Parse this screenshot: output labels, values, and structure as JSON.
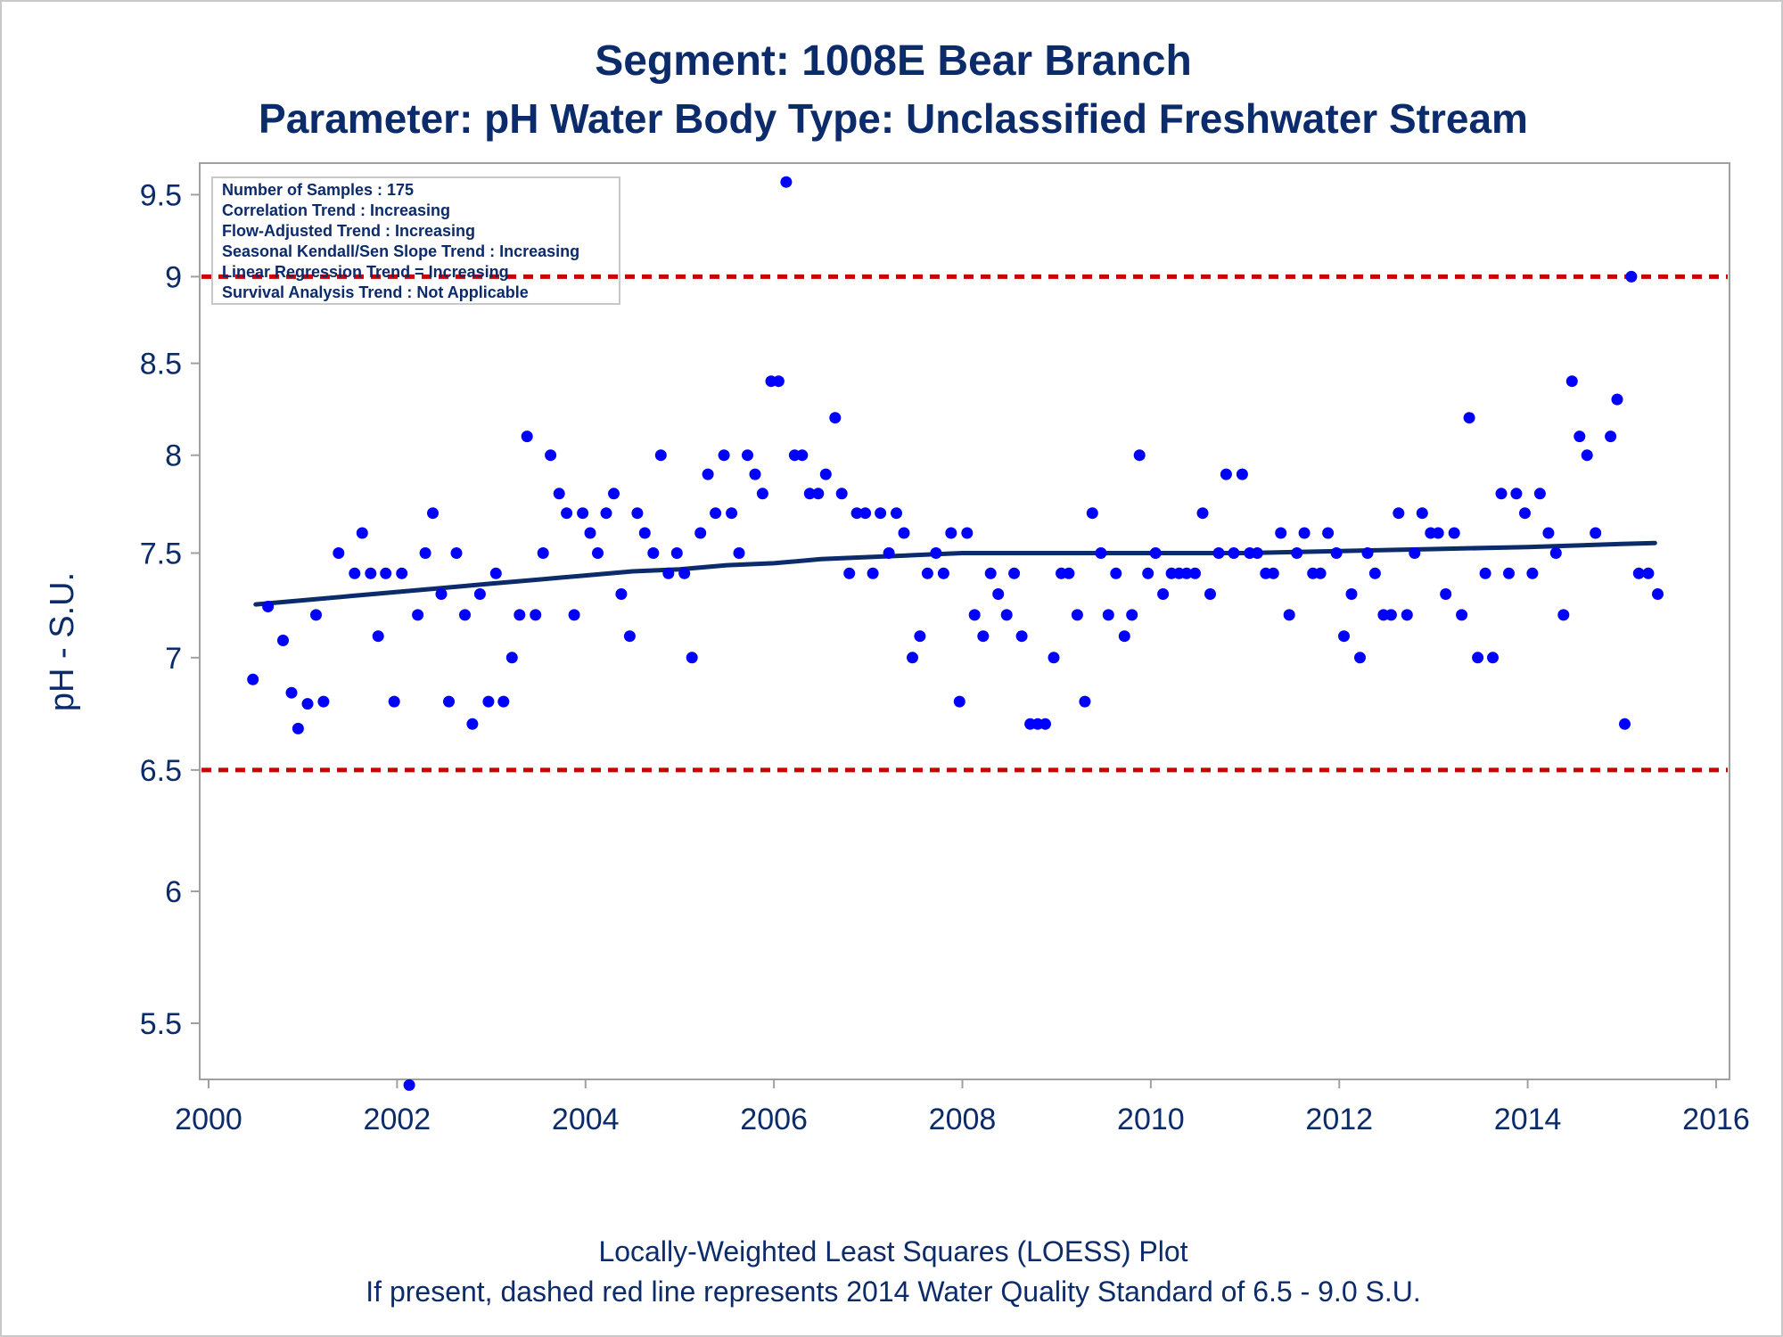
{
  "colors": {
    "text": "#0c2b6b",
    "points": "#0000ff",
    "loess": "#0c2b6b",
    "reference": "#cc0000",
    "frame": "#a0a0a0"
  },
  "chart_data": {
    "type": "scatter",
    "title": "Segment: 1008E  Bear Branch",
    "subtitle": "Parameter: pH   Water Body Type: Unclassified Freshwater Stream",
    "xlabel": "",
    "ylabel": "pH - S.U.",
    "xlim": [
      2000,
      2016
    ],
    "ylim": [
      5.3,
      9.7
    ],
    "y_scale": "log",
    "x_ticks": [
      "2000",
      "2002",
      "2004",
      "2006",
      "2008",
      "2010",
      "2012",
      "2014",
      "2016"
    ],
    "y_ticks": [
      "5.5",
      "6",
      "6.5",
      "7",
      "7.5",
      "8",
      "8.5",
      "9",
      "9.5"
    ],
    "grid": false,
    "stats_box": [
      "Number of Samples : 175",
      "Correlation Trend : Increasing",
      "Flow-Adjusted Trend : Increasing",
      "Seasonal Kendall/Sen Slope Trend : Increasing",
      "Linear Regression Trend = Increasing",
      "Survival Analysis Trend : Not Applicable"
    ],
    "stats_box_placement": "top-left",
    "reference_lines": [
      {
        "y": 9.0,
        "style": "dashed",
        "color": "#cc0000"
      },
      {
        "y": 6.5,
        "style": "dashed",
        "color": "#cc0000"
      }
    ],
    "series": [
      {
        "kind": "points",
        "points": [
          [
            2000.47,
            6.9
          ],
          [
            2000.63,
            7.24
          ],
          [
            2000.79,
            7.08
          ],
          [
            2000.88,
            6.84
          ],
          [
            2000.95,
            6.68
          ],
          [
            2001.05,
            6.79
          ],
          [
            2001.14,
            7.2
          ],
          [
            2001.22,
            6.8
          ],
          [
            2001.38,
            7.5
          ],
          [
            2001.55,
            7.4
          ],
          [
            2001.63,
            7.6
          ],
          [
            2001.72,
            7.4
          ],
          [
            2001.8,
            7.1
          ],
          [
            2001.88,
            7.4
          ],
          [
            2001.97,
            6.8
          ],
          [
            2002.05,
            7.4
          ],
          [
            2002.13,
            5.28
          ],
          [
            2002.22,
            7.2
          ],
          [
            2002.3,
            7.5
          ],
          [
            2002.38,
            7.7
          ],
          [
            2002.47,
            7.3
          ],
          [
            2002.55,
            6.8
          ],
          [
            2002.63,
            7.5
          ],
          [
            2002.72,
            7.2
          ],
          [
            2002.8,
            6.7
          ],
          [
            2002.88,
            7.3
          ],
          [
            2002.97,
            6.8
          ],
          [
            2003.05,
            7.4
          ],
          [
            2003.13,
            6.8
          ],
          [
            2003.22,
            7.0
          ],
          [
            2003.3,
            7.2
          ],
          [
            2003.38,
            8.1
          ],
          [
            2003.47,
            7.2
          ],
          [
            2003.55,
            7.5
          ],
          [
            2003.63,
            8.0
          ],
          [
            2003.72,
            7.8
          ],
          [
            2003.8,
            7.7
          ],
          [
            2003.88,
            7.2
          ],
          [
            2003.97,
            7.7
          ],
          [
            2004.05,
            7.6
          ],
          [
            2004.13,
            7.5
          ],
          [
            2004.22,
            7.7
          ],
          [
            2004.3,
            7.8
          ],
          [
            2004.38,
            7.3
          ],
          [
            2004.47,
            7.1
          ],
          [
            2004.55,
            7.7
          ],
          [
            2004.63,
            7.6
          ],
          [
            2004.72,
            7.5
          ],
          [
            2004.8,
            8.0
          ],
          [
            2004.88,
            7.4
          ],
          [
            2004.97,
            7.5
          ],
          [
            2005.05,
            7.4
          ],
          [
            2005.13,
            7.0
          ],
          [
            2005.22,
            7.6
          ],
          [
            2005.3,
            7.9
          ],
          [
            2005.38,
            7.7
          ],
          [
            2005.47,
            8.0
          ],
          [
            2005.55,
            7.7
          ],
          [
            2005.63,
            7.5
          ],
          [
            2005.72,
            8.0
          ],
          [
            2005.8,
            7.9
          ],
          [
            2005.88,
            7.8
          ],
          [
            2005.97,
            8.4
          ],
          [
            2006.05,
            8.4
          ],
          [
            2006.13,
            9.58
          ],
          [
            2006.22,
            8.0
          ],
          [
            2006.3,
            8.0
          ],
          [
            2006.38,
            7.8
          ],
          [
            2006.47,
            7.8
          ],
          [
            2006.55,
            7.9
          ],
          [
            2006.65,
            8.2
          ],
          [
            2006.72,
            7.8
          ],
          [
            2006.8,
            7.4
          ],
          [
            2006.88,
            7.7
          ],
          [
            2006.97,
            7.7
          ],
          [
            2007.05,
            7.4
          ],
          [
            2007.13,
            7.7
          ],
          [
            2007.22,
            7.5
          ],
          [
            2007.3,
            7.7
          ],
          [
            2007.38,
            7.6
          ],
          [
            2007.47,
            7.0
          ],
          [
            2007.55,
            7.1
          ],
          [
            2007.63,
            7.4
          ],
          [
            2007.72,
            7.5
          ],
          [
            2007.8,
            7.4
          ],
          [
            2007.88,
            7.6
          ],
          [
            2007.97,
            6.8
          ],
          [
            2008.05,
            7.6
          ],
          [
            2008.13,
            7.2
          ],
          [
            2008.22,
            7.1
          ],
          [
            2008.3,
            7.4
          ],
          [
            2008.38,
            7.3
          ],
          [
            2008.47,
            7.2
          ],
          [
            2008.55,
            7.4
          ],
          [
            2008.63,
            7.1
          ],
          [
            2008.72,
            6.7
          ],
          [
            2008.8,
            6.7
          ],
          [
            2008.88,
            6.7
          ],
          [
            2008.97,
            7.0
          ],
          [
            2009.05,
            7.4
          ],
          [
            2009.13,
            7.4
          ],
          [
            2009.22,
            7.2
          ],
          [
            2009.3,
            6.8
          ],
          [
            2009.38,
            7.7
          ],
          [
            2009.47,
            7.5
          ],
          [
            2009.55,
            7.2
          ],
          [
            2009.63,
            7.4
          ],
          [
            2009.72,
            7.1
          ],
          [
            2009.8,
            7.2
          ],
          [
            2009.88,
            8.0
          ],
          [
            2009.97,
            7.4
          ],
          [
            2010.05,
            7.5
          ],
          [
            2010.13,
            7.3
          ],
          [
            2010.22,
            7.4
          ],
          [
            2010.3,
            7.4
          ],
          [
            2010.38,
            7.4
          ],
          [
            2010.47,
            7.4
          ],
          [
            2010.55,
            7.7
          ],
          [
            2010.63,
            7.3
          ],
          [
            2010.72,
            7.5
          ],
          [
            2010.8,
            7.9
          ],
          [
            2010.88,
            7.5
          ],
          [
            2010.97,
            7.9
          ],
          [
            2011.05,
            7.5
          ],
          [
            2011.13,
            7.5
          ],
          [
            2011.22,
            7.4
          ],
          [
            2011.3,
            7.4
          ],
          [
            2011.38,
            7.6
          ],
          [
            2011.47,
            7.2
          ],
          [
            2011.55,
            7.5
          ],
          [
            2011.63,
            7.6
          ],
          [
            2011.72,
            7.4
          ],
          [
            2011.8,
            7.4
          ],
          [
            2011.88,
            7.6
          ],
          [
            2011.97,
            7.5
          ],
          [
            2012.05,
            7.1
          ],
          [
            2012.13,
            7.3
          ],
          [
            2012.22,
            7.0
          ],
          [
            2012.3,
            7.5
          ],
          [
            2012.38,
            7.4
          ],
          [
            2012.47,
            7.2
          ],
          [
            2012.55,
            7.2
          ],
          [
            2012.63,
            7.7
          ],
          [
            2012.72,
            7.2
          ],
          [
            2012.8,
            7.5
          ],
          [
            2012.88,
            7.7
          ],
          [
            2012.97,
            7.6
          ],
          [
            2013.05,
            7.6
          ],
          [
            2013.13,
            7.3
          ],
          [
            2013.22,
            7.6
          ],
          [
            2013.3,
            7.2
          ],
          [
            2013.38,
            8.2
          ],
          [
            2013.47,
            7.0
          ],
          [
            2013.55,
            7.4
          ],
          [
            2013.63,
            7.0
          ],
          [
            2013.72,
            7.8
          ],
          [
            2013.8,
            7.4
          ],
          [
            2013.88,
            7.8
          ],
          [
            2013.97,
            7.7
          ],
          [
            2014.05,
            7.4
          ],
          [
            2014.13,
            7.8
          ],
          [
            2014.22,
            7.6
          ],
          [
            2014.3,
            7.5
          ],
          [
            2014.38,
            7.2
          ],
          [
            2014.47,
            8.4
          ],
          [
            2014.55,
            8.1
          ],
          [
            2014.63,
            8.0
          ],
          [
            2014.72,
            7.6
          ],
          [
            2014.88,
            8.1
          ],
          [
            2014.95,
            8.3
          ],
          [
            2015.03,
            6.7
          ],
          [
            2015.1,
            9.0
          ],
          [
            2015.18,
            7.4
          ],
          [
            2015.28,
            7.4
          ],
          [
            2015.38,
            7.3
          ]
        ]
      },
      {
        "kind": "loess",
        "points": [
          [
            2000.5,
            7.25
          ],
          [
            2001.0,
            7.27
          ],
          [
            2001.5,
            7.29
          ],
          [
            2002.0,
            7.31
          ],
          [
            2002.5,
            7.33
          ],
          [
            2003.0,
            7.35
          ],
          [
            2003.5,
            7.37
          ],
          [
            2004.0,
            7.39
          ],
          [
            2004.5,
            7.41
          ],
          [
            2005.0,
            7.42
          ],
          [
            2005.5,
            7.44
          ],
          [
            2006.0,
            7.45
          ],
          [
            2006.5,
            7.47
          ],
          [
            2007.0,
            7.48
          ],
          [
            2007.5,
            7.49
          ],
          [
            2008.0,
            7.5
          ],
          [
            2009.0,
            7.5
          ],
          [
            2010.0,
            7.5
          ],
          [
            2011.0,
            7.5
          ],
          [
            2012.0,
            7.51
          ],
          [
            2013.0,
            7.52
          ],
          [
            2014.0,
            7.53
          ],
          [
            2015.0,
            7.545
          ],
          [
            2015.35,
            7.55
          ]
        ]
      }
    ]
  },
  "footer": {
    "line1": "Locally-Weighted Least Squares (LOESS) Plot",
    "line2": "If present, dashed red line represents 2014 Water Quality Standard of 6.5 - 9.0 S.U."
  }
}
